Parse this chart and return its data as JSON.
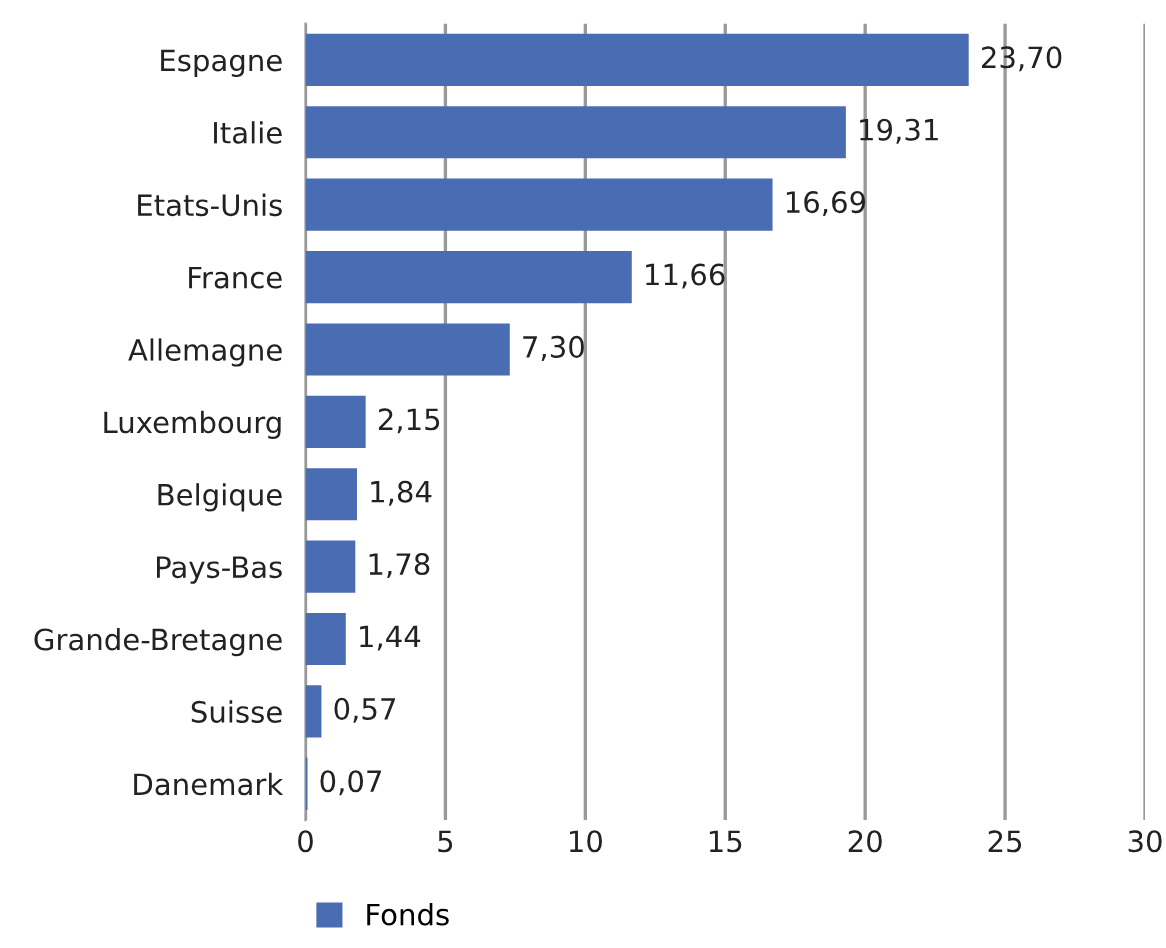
{
  "chart_data": {
    "type": "bar",
    "orientation": "horizontal",
    "categories": [
      "Espagne",
      "Italie",
      "Etats-Unis",
      "France",
      "Allemagne",
      "Luxembourg",
      "Belgique",
      "Pays-Bas",
      "Grande-Bretagne",
      "Suisse",
      "Danemark"
    ],
    "series": [
      {
        "name": "Fonds",
        "color": "#4a6cb3",
        "values": [
          23.7,
          19.31,
          16.69,
          11.66,
          7.3,
          2.15,
          1.84,
          1.78,
          1.44,
          0.57,
          0.07
        ],
        "value_labels": [
          "23,70",
          "19,31",
          "16,69",
          "11,66",
          "7,30",
          "2,15",
          "1,84",
          "1,78",
          "1,44",
          "0,57",
          "0,07"
        ]
      }
    ],
    "xlim": [
      0,
      30
    ],
    "xticks": [
      0,
      5,
      10,
      15,
      20,
      25,
      30
    ],
    "grid": "x",
    "legend": "bottom left"
  }
}
